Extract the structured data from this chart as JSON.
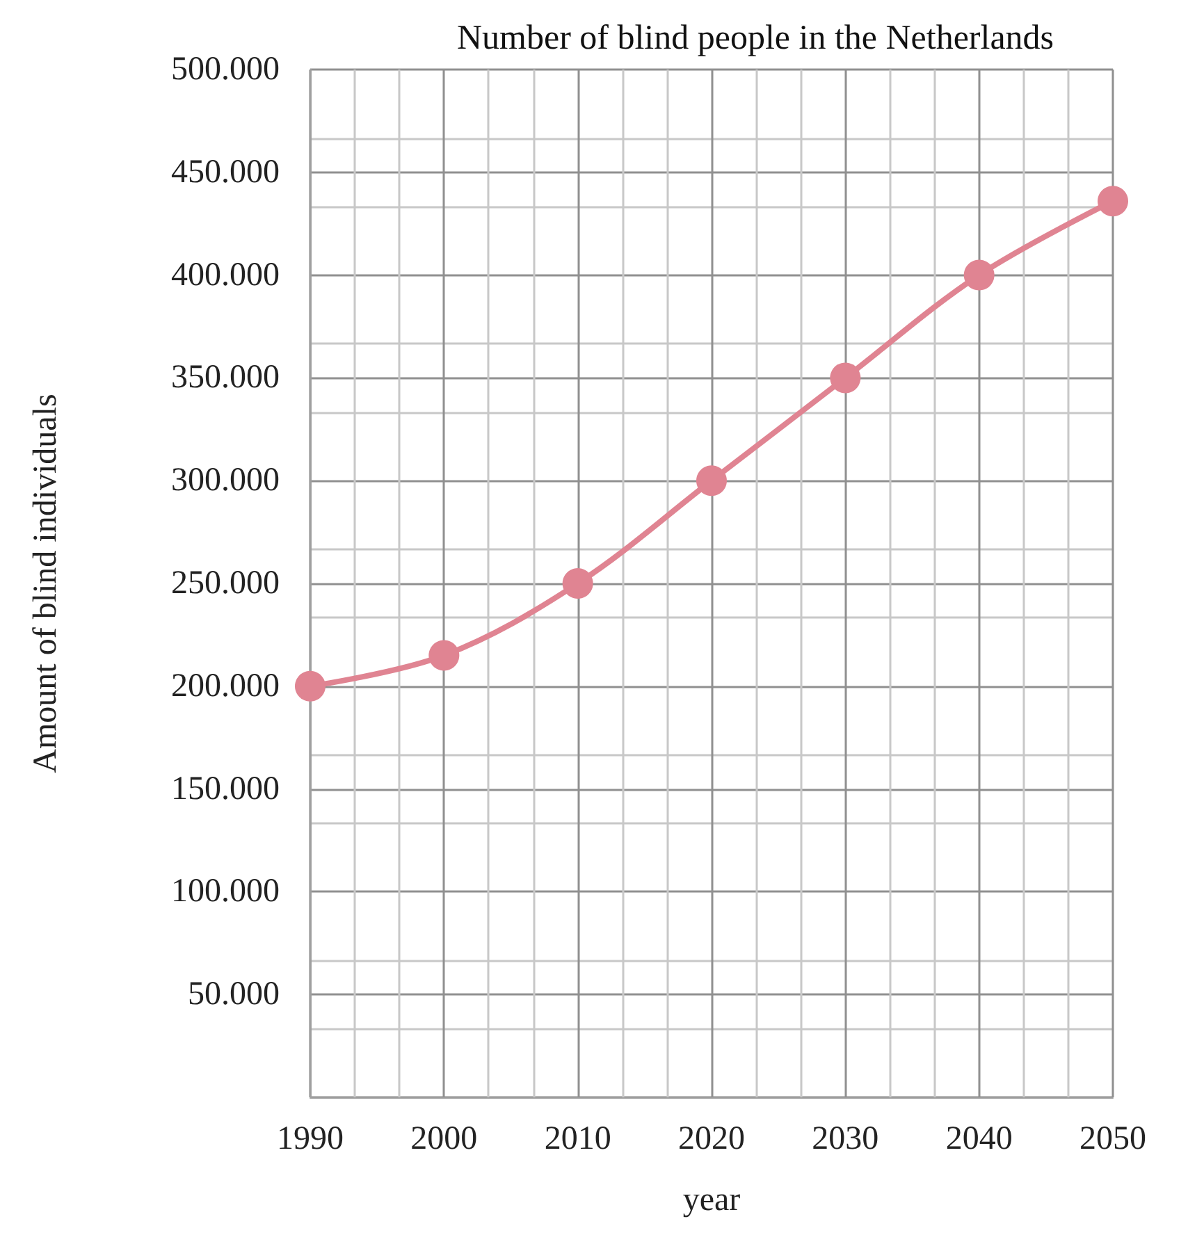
{
  "chart_data": {
    "type": "line",
    "title": "Number of blind people in the Netherlands",
    "xlabel": "year",
    "ylabel": "Amount of blind individuals",
    "x": [
      1990,
      2000,
      2010,
      2020,
      2030,
      2040,
      2050
    ],
    "series": [
      {
        "color": "#e08492",
        "values": [
          200000,
          215000,
          250000,
          300000,
          350000,
          400000,
          436000
        ]
      }
    ],
    "xlim": [
      1990,
      2050
    ],
    "xticks": [
      1990,
      2000,
      2010,
      2020,
      2030,
      2040,
      2050
    ],
    "ylim": [
      0,
      500000
    ],
    "yticks": [
      {
        "value": 0,
        "label": null
      },
      {
        "value": 50000,
        "label": "50.000"
      },
      {
        "value": 100000,
        "label": "100.000"
      },
      {
        "value": 150000,
        "label": "150.000"
      },
      {
        "value": 200000,
        "label": "200.000"
      },
      {
        "value": 250000,
        "label": "250.000"
      },
      {
        "value": 300000,
        "label": "300.000"
      },
      {
        "value": 350000,
        "label": "350.000"
      },
      {
        "value": 400000,
        "label": "400.000"
      },
      {
        "value": 450000,
        "label": "450.000"
      },
      {
        "value": 500000,
        "label": "500.000"
      }
    ],
    "grid": true,
    "marker": "circle",
    "line_style": "solid"
  }
}
